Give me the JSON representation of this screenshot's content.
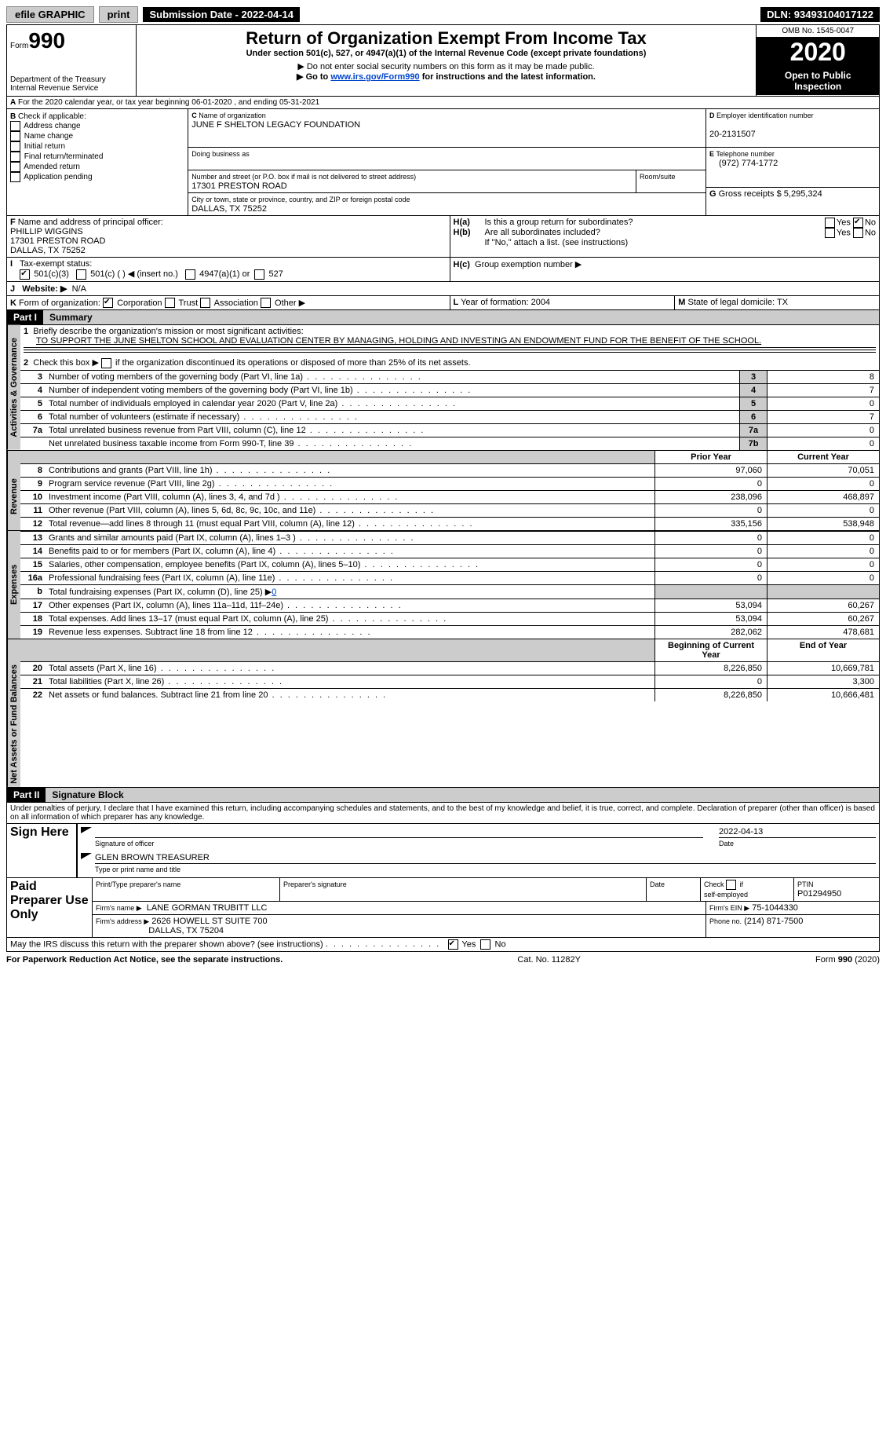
{
  "topbar": {
    "efile": "efile GRAPHIC",
    "print": "print",
    "submission": "Submission Date - 2022-04-14",
    "dln": "DLN: 93493104017122"
  },
  "header": {
    "form_label": "Form",
    "form_no": "990",
    "dept": "Department of the Treasury Internal Revenue Service",
    "title": "Return of Organization Exempt From Income Tax",
    "subtitle": "Under section 501(c), 527, or 4947(a)(1) of the Internal Revenue Code (except private foundations)",
    "note1": "▶ Do not enter social security numbers on this form as it may be made public.",
    "note2_pre": "▶ Go to ",
    "note2_link": "www.irs.gov/Form990",
    "note2_post": " for instructions and the latest information.",
    "omb": "OMB No. 1545-0047",
    "year": "2020",
    "open_pub": "Open to Public Inspection"
  },
  "A": {
    "text": "For the 2020 calendar year, or tax year beginning 06-01-2020   , and ending 05-31-2021"
  },
  "B": {
    "label": "Check if applicable:",
    "opts": [
      "Address change",
      "Name change",
      "Initial return",
      "Final return/terminated",
      "Amended return",
      "Application pending"
    ]
  },
  "C": {
    "label": "Name of organization",
    "name": "JUNE F SHELTON LEGACY FOUNDATION",
    "dba_label": "Doing business as",
    "addr_label": "Number and street (or P.O. box if mail is not delivered to street address)",
    "room_label": "Room/suite",
    "addr": "17301 PRESTON ROAD",
    "city_label": "City or town, state or province, country, and ZIP or foreign postal code",
    "city": "DALLAS, TX  75252"
  },
  "D": {
    "label": "Employer identification number",
    "val": "20-2131507"
  },
  "E": {
    "label": "Telephone number",
    "val": "(972) 774-1772"
  },
  "G": {
    "label": "Gross receipts $",
    "val": "5,295,324"
  },
  "F": {
    "label": "Name and address of principal officer:",
    "name": "PHILLIP WIGGINS",
    "addr1": "17301 PRESTON ROAD",
    "addr2": "DALLAS, TX  75252"
  },
  "H": {
    "a": "Is this a group return for subordinates?",
    "b": "Are all subordinates included?",
    "b_note": "If \"No,\" attach a list. (see instructions)",
    "c": "Group exemption number ▶",
    "yes": "Yes",
    "no": "No"
  },
  "I": {
    "label": "Tax-exempt status:",
    "c3": "501(c)(3)",
    "c": "501(c) (  ) ◀ (insert no.)",
    "a4947": "4947(a)(1) or",
    "s527": "527"
  },
  "J": {
    "label": "Website: ▶",
    "val": "N/A"
  },
  "K": {
    "label": "Form of organization:",
    "opts": [
      "Corporation",
      "Trust",
      "Association",
      "Other ▶"
    ]
  },
  "L": {
    "label": "Year of formation:",
    "val": "2004"
  },
  "M": {
    "label": "State of legal domicile:",
    "val": "TX"
  },
  "parts": {
    "p1": "Part I",
    "p1_title": "Summary",
    "p2": "Part II",
    "p2_title": "Signature Block"
  },
  "summary": {
    "l1_label": "Briefly describe the organization's mission or most significant activities:",
    "l1_text": "TO SUPPORT THE JUNE SHELTON SCHOOL AND EVALUATION CENTER BY MANAGING, HOLDING AND INVESTING AN ENDOWMENT FUND FOR THE BENEFIT OF THE SCHOOL.",
    "l2": "Check this box ▶",
    "l2_post": " if the organization discontinued its operations or disposed of more than 25% of its net assets.",
    "lines_ag": [
      {
        "n": "3",
        "d": "Number of voting members of the governing body (Part VI, line 1a)",
        "box": "3",
        "v": "8"
      },
      {
        "n": "4",
        "d": "Number of independent voting members of the governing body (Part VI, line 1b)",
        "box": "4",
        "v": "7"
      },
      {
        "n": "5",
        "d": "Total number of individuals employed in calendar year 2020 (Part V, line 2a)",
        "box": "5",
        "v": "0"
      },
      {
        "n": "6",
        "d": "Total number of volunteers (estimate if necessary)",
        "box": "6",
        "v": "7"
      },
      {
        "n": "7a",
        "d": "Total unrelated business revenue from Part VIII, column (C), line 12",
        "box": "7a",
        "v": "0"
      },
      {
        "n": "",
        "d": "Net unrelated business taxable income from Form 990-T, line 39",
        "box": "7b",
        "v": "0"
      }
    ],
    "prior": "Prior Year",
    "current": "Current Year",
    "rev": [
      {
        "n": "8",
        "d": "Contributions and grants (Part VIII, line 1h)",
        "p": "97,060",
        "c": "70,051"
      },
      {
        "n": "9",
        "d": "Program service revenue (Part VIII, line 2g)",
        "p": "0",
        "c": "0"
      },
      {
        "n": "10",
        "d": "Investment income (Part VIII, column (A), lines 3, 4, and 7d )",
        "p": "238,096",
        "c": "468,897"
      },
      {
        "n": "11",
        "d": "Other revenue (Part VIII, column (A), lines 5, 6d, 8c, 9c, 10c, and 11e)",
        "p": "0",
        "c": "0"
      },
      {
        "n": "12",
        "d": "Total revenue—add lines 8 through 11 (must equal Part VIII, column (A), line 12)",
        "p": "335,156",
        "c": "538,948"
      }
    ],
    "exp": [
      {
        "n": "13",
        "d": "Grants and similar amounts paid (Part IX, column (A), lines 1–3 )",
        "p": "0",
        "c": "0"
      },
      {
        "n": "14",
        "d": "Benefits paid to or for members (Part IX, column (A), line 4)",
        "p": "0",
        "c": "0"
      },
      {
        "n": "15",
        "d": "Salaries, other compensation, employee benefits (Part IX, column (A), lines 5–10)",
        "p": "0",
        "c": "0"
      },
      {
        "n": "16a",
        "d": "Professional fundraising fees (Part IX, column (A), line 11e)",
        "p": "0",
        "c": "0"
      },
      {
        "n": "b",
        "d": "Total fundraising expenses (Part IX, column (D), line 25) ▶",
        "p": "",
        "c": "",
        "shade": true,
        "link": "0"
      },
      {
        "n": "17",
        "d": "Other expenses (Part IX, column (A), lines 11a–11d, 11f–24e)",
        "p": "53,094",
        "c": "60,267"
      },
      {
        "n": "18",
        "d": "Total expenses. Add lines 13–17 (must equal Part IX, column (A), line 25)",
        "p": "53,094",
        "c": "60,267"
      },
      {
        "n": "19",
        "d": "Revenue less expenses. Subtract line 18 from line 12",
        "p": "282,062",
        "c": "478,681"
      }
    ],
    "boy": "Beginning of Current Year",
    "eoy": "End of Year",
    "net": [
      {
        "n": "20",
        "d": "Total assets (Part X, line 16)",
        "p": "8,226,850",
        "c": "10,669,781"
      },
      {
        "n": "21",
        "d": "Total liabilities (Part X, line 26)",
        "p": "0",
        "c": "3,300"
      },
      {
        "n": "22",
        "d": "Net assets or fund balances. Subtract line 21 from line 20",
        "p": "8,226,850",
        "c": "10,666,481"
      }
    ]
  },
  "tabs": {
    "ag": "Activities & Governance",
    "rev": "Revenue",
    "exp": "Expenses",
    "net": "Net Assets or Fund Balances"
  },
  "sig": {
    "decl": "Under penalties of perjury, I declare that I have examined this return, including accompanying schedules and statements, and to the best of my knowledge and belief, it is true, correct, and complete. Declaration of preparer (other than officer) is based on all information of which preparer has any knowledge.",
    "sign_here": "Sign Here",
    "sig_officer": "Signature of officer",
    "date_label": "Date",
    "date": "2022-04-13",
    "name": "GLEN BROWN TREASURER",
    "name_label": "Type or print name and title",
    "paid": "Paid Preparer Use Only",
    "prep_name_label": "Print/Type preparer's name",
    "prep_sig_label": "Preparer's signature",
    "check_self": "Check",
    "self_emp": "self-employed",
    "ptin_label": "PTIN",
    "ptin": "P01294950",
    "firm_name_label": "Firm's name   ▶",
    "firm_name": "LANE GORMAN TRUBITT LLC",
    "firm_ein_label": "Firm's EIN ▶",
    "firm_ein": "75-1044330",
    "firm_addr_label": "Firm's address ▶",
    "firm_addr": "2626 HOWELL ST SUITE 700",
    "firm_city": "DALLAS, TX  75204",
    "phone_label": "Phone no.",
    "phone": "(214) 871-7500",
    "discuss": "May the IRS discuss this return with the preparer shown above? (see instructions)"
  },
  "footer": {
    "pra": "For Paperwork Reduction Act Notice, see the separate instructions.",
    "cat": "Cat. No. 11282Y",
    "form": "Form 990 (2020)"
  }
}
